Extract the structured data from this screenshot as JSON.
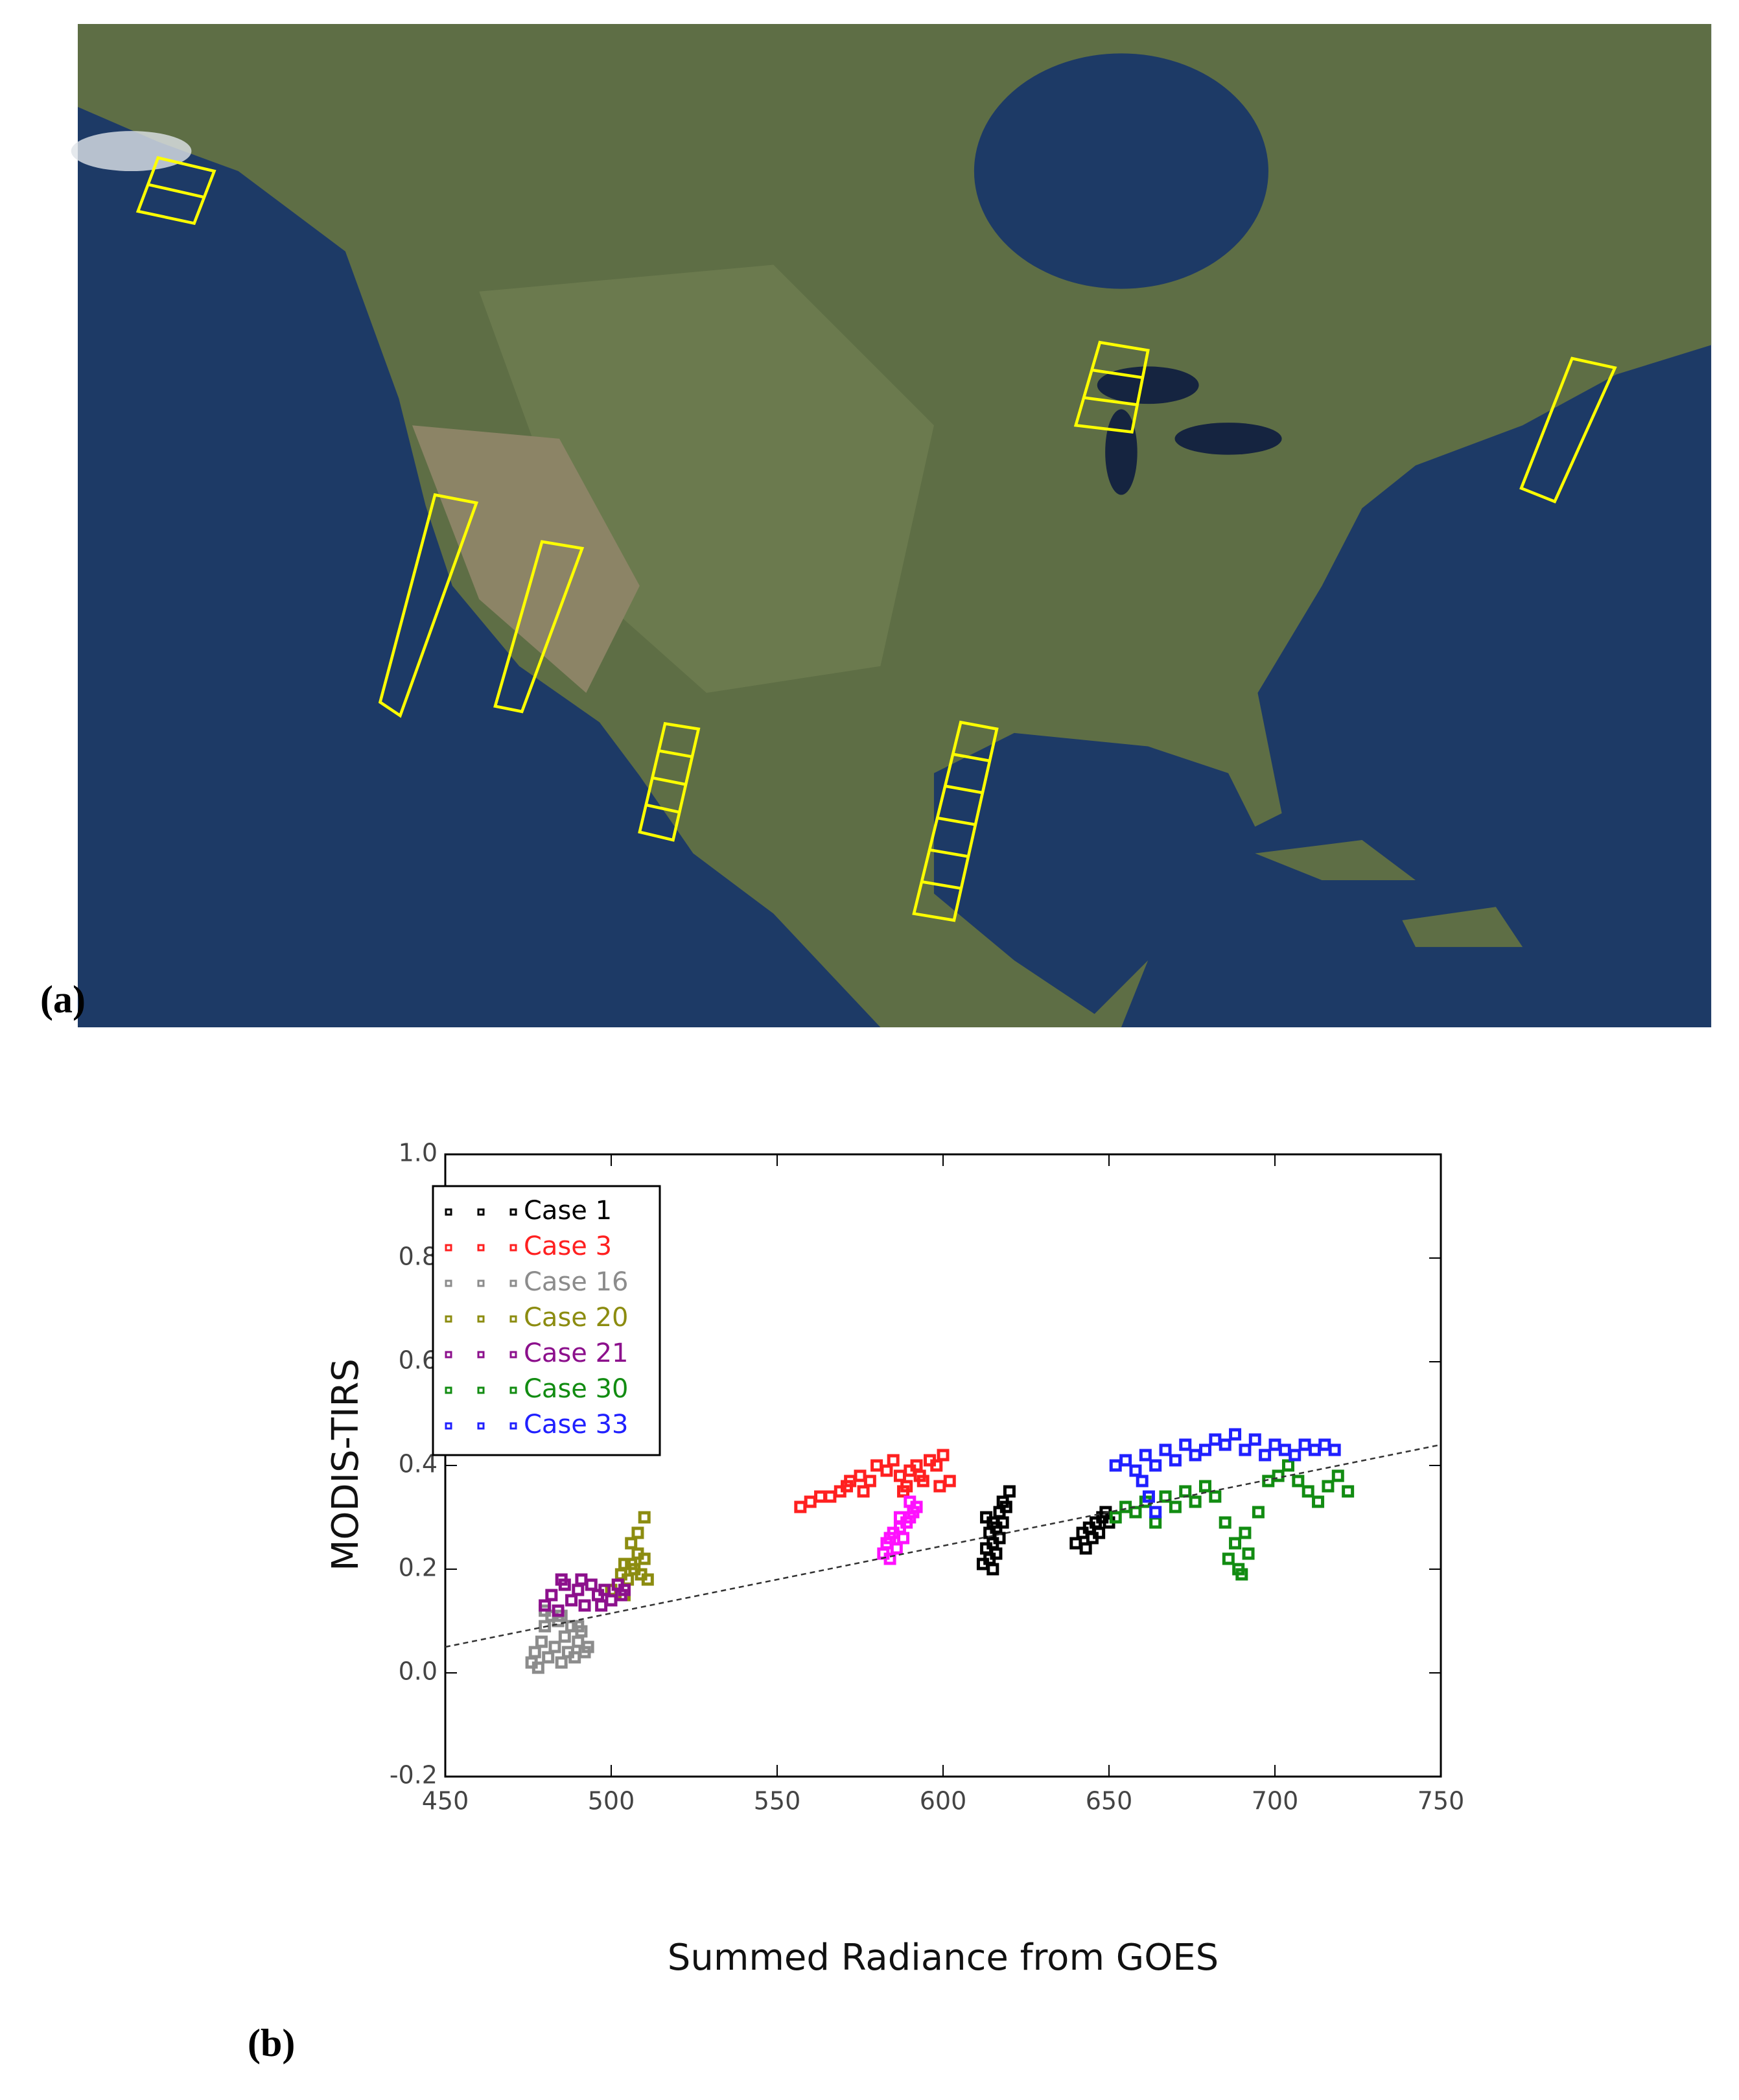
{
  "panel_a": {
    "label": "(a)"
  },
  "panel_b": {
    "label": "(b)"
  },
  "chart_data": {
    "type": "scatter",
    "x_label": "Summed Radiance from GOES",
    "y_label": "MODIS-TIRS",
    "xlim": [
      450,
      750
    ],
    "xticks": [
      450,
      500,
      550,
      600,
      650,
      700,
      750
    ],
    "ylim": [
      -0.2,
      1.0
    ],
    "yticks": [
      -0.2,
      {
        "value": 0,
        "label": "0.0"
      },
      0.2,
      0.4,
      0.6,
      0.8,
      {
        "value": 1,
        "label": "1.0"
      }
    ],
    "legend": "upper-left",
    "fit_line": {
      "x": [
        450,
        750
      ],
      "y": [
        0.05,
        0.44
      ],
      "color": "#333333"
    },
    "series": [
      {
        "name": "Case 1",
        "color": "#000000",
        "x": [
          612,
          613,
          614,
          614,
          615,
          615,
          616,
          616,
          617,
          617,
          618,
          618,
          619,
          620,
          613,
          615,
          640,
          642,
          643,
          644,
          645,
          646,
          647,
          648,
          649,
          650
        ],
        "values": [
          0.21,
          0.24,
          0.27,
          0.22,
          0.25,
          0.29,
          0.23,
          0.28,
          0.26,
          0.31,
          0.29,
          0.33,
          0.32,
          0.35,
          0.3,
          0.2,
          0.25,
          0.27,
          0.24,
          0.28,
          0.26,
          0.29,
          0.27,
          0.3,
          0.31,
          0.29
        ]
      },
      {
        "name": "Case 3",
        "color": "#ff2020",
        "x": [
          557,
          560,
          563,
          566,
          569,
          572,
          575,
          578,
          580,
          583,
          585,
          587,
          589,
          590,
          592,
          594,
          596,
          598,
          600,
          602,
          588,
          593,
          599,
          571,
          576
        ],
        "values": [
          0.32,
          0.33,
          0.34,
          0.34,
          0.35,
          0.37,
          0.38,
          0.37,
          0.4,
          0.39,
          0.41,
          0.38,
          0.36,
          0.39,
          0.4,
          0.37,
          0.41,
          0.4,
          0.42,
          0.37,
          0.35,
          0.38,
          0.36,
          0.36,
          0.35
        ]
      },
      {
        "name": "Case 16",
        "color": "#8c8c8c",
        "x": [
          476,
          477,
          478,
          479,
          480,
          481,
          482,
          483,
          484,
          485,
          486,
          487,
          488,
          489,
          490,
          491,
          492,
          493,
          480,
          485,
          490
        ],
        "values": [
          0.02,
          0.04,
          0.01,
          0.06,
          0.09,
          0.03,
          0.11,
          0.05,
          0.1,
          0.02,
          0.07,
          0.04,
          0.09,
          0.03,
          0.06,
          0.08,
          0.04,
          0.05,
          0.12,
          0.11,
          0.09
        ]
      },
      {
        "name": "Case 20",
        "color": "#8c8c10",
        "x": [
          500,
          502,
          503,
          504,
          505,
          506,
          507,
          508,
          509,
          510,
          511,
          508,
          510,
          506,
          504
        ],
        "values": [
          0.16,
          0.17,
          0.19,
          0.15,
          0.18,
          0.21,
          0.2,
          0.23,
          0.19,
          0.22,
          0.18,
          0.27,
          0.3,
          0.25,
          0.21
        ]
      },
      {
        "name": "Case 21",
        "color": "#8c108c",
        "x": [
          480,
          482,
          484,
          486,
          488,
          490,
          492,
          494,
          496,
          498,
          500,
          502,
          504,
          485,
          491,
          497,
          503
        ],
        "values": [
          0.13,
          0.15,
          0.12,
          0.17,
          0.14,
          0.16,
          0.13,
          0.17,
          0.15,
          0.16,
          0.14,
          0.17,
          0.16,
          0.18,
          0.18,
          0.13,
          0.15
        ]
      },
      {
        "name": "Case 30",
        "color": "#128c12",
        "x": [
          652,
          655,
          658,
          661,
          664,
          667,
          670,
          673,
          676,
          679,
          682,
          685,
          688,
          690,
          692,
          695,
          698,
          701,
          704,
          707,
          710,
          713,
          716,
          719,
          722,
          686,
          689,
          691
        ],
        "values": [
          0.3,
          0.32,
          0.31,
          0.33,
          0.29,
          0.34,
          0.32,
          0.35,
          0.33,
          0.36,
          0.34,
          0.29,
          0.25,
          0.19,
          0.23,
          0.31,
          0.37,
          0.38,
          0.4,
          0.37,
          0.35,
          0.33,
          0.36,
          0.38,
          0.35,
          0.22,
          0.2,
          0.27
        ]
      },
      {
        "name": "Case 33",
        "color": "#2020ff",
        "x": [
          652,
          655,
          658,
          661,
          664,
          667,
          670,
          673,
          676,
          679,
          682,
          685,
          688,
          691,
          694,
          697,
          700,
          703,
          706,
          709,
          712,
          715,
          718,
          662,
          664,
          660
        ],
        "values": [
          0.4,
          0.41,
          0.39,
          0.42,
          0.4,
          0.43,
          0.41,
          0.44,
          0.42,
          0.43,
          0.45,
          0.44,
          0.46,
          0.43,
          0.45,
          0.42,
          0.44,
          0.43,
          0.42,
          0.44,
          0.43,
          0.44,
          0.43,
          0.34,
          0.31,
          0.37
        ]
      },
      {
        "color": "#ff10ff",
        "x": [
          582,
          583,
          584,
          585,
          586,
          587,
          588,
          589,
          590,
          591,
          592,
          584,
          587,
          590
        ],
        "values": [
          0.23,
          0.25,
          0.22,
          0.27,
          0.24,
          0.28,
          0.26,
          0.29,
          0.3,
          0.31,
          0.32,
          0.26,
          0.3,
          0.33
        ]
      }
    ]
  }
}
